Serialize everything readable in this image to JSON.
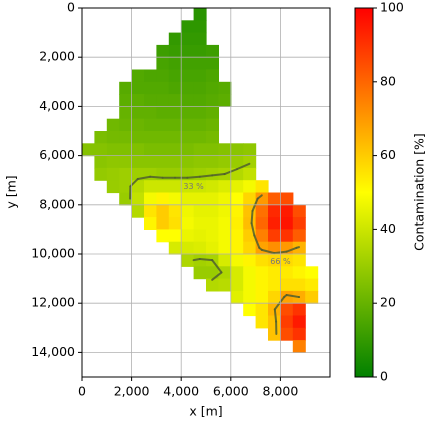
{
  "chart_data": {
    "type": "heatmap",
    "xlabel": "x [m]",
    "ylabel": "y [m]",
    "colorbar_label": "Contamination [%]",
    "x": [
      250,
      750,
      1250,
      1750,
      2250,
      2750,
      3250,
      3750,
      4250,
      4750,
      5250,
      5750,
      6250,
      6750,
      7250,
      7750,
      8250,
      8750,
      9250,
      9750
    ],
    "y": [
      250,
      750,
      1250,
      1750,
      2250,
      2750,
      3250,
      3750,
      4250,
      4750,
      5250,
      5750,
      6250,
      6750,
      7250,
      7750,
      8250,
      8750,
      9250,
      9750,
      10250,
      10750,
      11250,
      11750,
      12250,
      12750,
      13250,
      13750
    ],
    "z": [
      [
        null,
        null,
        null,
        null,
        null,
        null,
        null,
        null,
        null,
        8,
        null,
        null,
        null,
        null,
        null,
        null,
        null,
        null,
        null,
        null
      ],
      [
        null,
        null,
        null,
        null,
        null,
        null,
        null,
        null,
        9,
        9,
        null,
        null,
        null,
        null,
        null,
        null,
        null,
        null,
        null,
        null
      ],
      [
        null,
        null,
        null,
        null,
        null,
        null,
        null,
        10,
        10,
        10,
        null,
        null,
        null,
        null,
        null,
        null,
        null,
        null,
        null,
        null
      ],
      [
        null,
        null,
        null,
        null,
        null,
        null,
        12,
        11,
        11,
        11,
        12,
        null,
        null,
        null,
        null,
        null,
        null,
        null,
        null,
        null
      ],
      [
        null,
        null,
        null,
        null,
        null,
        null,
        14,
        13,
        13,
        13,
        13,
        null,
        null,
        null,
        null,
        null,
        null,
        null,
        null,
        null
      ],
      [
        null,
        null,
        null,
        null,
        16,
        15,
        15,
        14,
        14,
        14,
        15,
        null,
        null,
        null,
        null,
        null,
        null,
        null,
        null,
        null
      ],
      [
        null,
        null,
        null,
        17,
        16,
        16,
        16,
        15,
        15,
        15,
        16,
        17,
        null,
        null,
        null,
        null,
        null,
        null,
        null,
        null
      ],
      [
        null,
        null,
        null,
        18,
        18,
        17,
        17,
        17,
        16,
        16,
        17,
        18,
        null,
        null,
        null,
        null,
        null,
        null,
        null,
        null
      ],
      [
        null,
        null,
        null,
        20,
        19,
        19,
        18,
        18,
        18,
        18,
        19,
        null,
        null,
        null,
        null,
        null,
        null,
        null,
        null,
        null
      ],
      [
        null,
        null,
        22,
        21,
        21,
        20,
        20,
        20,
        20,
        20,
        21,
        null,
        null,
        null,
        null,
        null,
        null,
        null,
        null,
        null
      ],
      [
        null,
        24,
        23,
        23,
        22,
        22,
        22,
        22,
        22,
        22,
        23,
        null,
        null,
        null,
        null,
        null,
        null,
        null,
        null,
        null
      ],
      [
        26,
        26,
        25,
        25,
        25,
        24,
        24,
        24,
        24,
        25,
        25,
        26,
        27,
        28,
        null,
        null,
        null,
        null,
        null,
        null
      ],
      [
        null,
        27,
        28,
        28,
        27,
        27,
        27,
        27,
        27,
        28,
        28,
        29,
        30,
        32,
        null,
        null,
        null,
        null,
        null,
        null
      ],
      [
        null,
        29,
        30,
        31,
        31,
        31,
        30,
        30,
        30,
        31,
        32,
        33,
        35,
        38,
        null,
        null,
        null,
        null,
        null,
        null
      ],
      [
        null,
        null,
        30,
        31,
        36,
        40,
        40,
        40,
        40,
        40,
        41,
        43,
        45,
        48,
        55,
        null,
        null,
        null,
        null,
        null
      ],
      [
        null,
        null,
        null,
        30,
        38,
        48,
        52,
        48,
        45,
        45,
        45,
        47,
        50,
        58,
        70,
        82,
        85,
        null,
        null,
        null
      ],
      [
        null,
        null,
        null,
        null,
        35,
        55,
        60,
        55,
        47,
        45,
        45,
        47,
        52,
        62,
        78,
        92,
        95,
        85,
        null,
        null
      ],
      [
        null,
        null,
        null,
        null,
        null,
        52,
        60,
        56,
        48,
        46,
        46,
        48,
        53,
        63,
        80,
        94,
        96,
        88,
        null,
        null
      ],
      [
        null,
        null,
        null,
        null,
        null,
        null,
        50,
        50,
        46,
        45,
        46,
        48,
        52,
        60,
        75,
        88,
        90,
        82,
        null,
        null
      ],
      [
        null,
        null,
        null,
        null,
        null,
        null,
        null,
        42,
        42,
        43,
        45,
        48,
        52,
        58,
        68,
        72,
        70,
        65,
        null,
        null
      ],
      [
        null,
        null,
        null,
        null,
        null,
        null,
        null,
        null,
        34,
        32,
        33,
        42,
        48,
        52,
        56,
        58,
        57,
        55,
        null,
        null
      ],
      [
        null,
        null,
        null,
        null,
        null,
        null,
        null,
        null,
        null,
        30,
        30,
        34,
        42,
        48,
        52,
        54,
        54,
        52,
        50,
        null
      ],
      [
        null,
        null,
        null,
        null,
        null,
        null,
        null,
        null,
        null,
        null,
        35,
        36,
        42,
        48,
        52,
        54,
        56,
        56,
        54,
        null
      ],
      [
        null,
        null,
        null,
        null,
        null,
        null,
        null,
        null,
        null,
        null,
        null,
        null,
        44,
        48,
        52,
        58,
        68,
        66,
        60,
        null
      ],
      [
        null,
        null,
        null,
        null,
        null,
        null,
        null,
        null,
        null,
        null,
        null,
        null,
        null,
        50,
        55,
        65,
        85,
        90,
        null,
        null
      ],
      [
        null,
        null,
        null,
        null,
        null,
        null,
        null,
        null,
        null,
        null,
        null,
        null,
        null,
        null,
        55,
        62,
        88,
        95,
        null,
        null
      ],
      [
        null,
        null,
        null,
        null,
        null,
        null,
        null,
        null,
        null,
        null,
        null,
        null,
        null,
        null,
        null,
        62,
        85,
        90,
        null,
        null
      ],
      [
        null,
        null,
        null,
        null,
        null,
        null,
        null,
        null,
        null,
        null,
        null,
        null,
        null,
        null,
        null,
        null,
        null,
        75,
        null,
        null
      ]
    ],
    "colormap": [
      "#008000",
      "#ffff00",
      "#ff0000"
    ],
    "clim": [
      0,
      100
    ],
    "cticks": [
      0,
      20,
      40,
      60,
      80,
      100
    ],
    "contour_levels": [
      33,
      66
    ],
    "contour_labels": [
      "33 %",
      "66 %"
    ],
    "contour_color": "#4f5f2f",
    "xlim": [
      0,
      10000
    ],
    "xticks": [
      0,
      {
        "value": 2000,
        "label": "2,000"
      },
      {
        "value": 4000,
        "label": "4,000"
      },
      {
        "value": 6000,
        "label": "6,000"
      },
      {
        "value": 8000,
        "label": "8,000"
      }
    ],
    "ylim": [
      15000,
      0
    ],
    "yticks": [
      0,
      {
        "value": 2000,
        "label": "2,000"
      },
      {
        "value": 4000,
        "label": "4,000"
      },
      {
        "value": 6000,
        "label": "6,000"
      },
      {
        "value": 8000,
        "label": "8,000"
      },
      {
        "value": 10000,
        "label": "10,000"
      },
      {
        "value": 12000,
        "label": "12,000"
      },
      {
        "value": 14000,
        "label": "14,000"
      }
    ],
    "grid": true
  }
}
